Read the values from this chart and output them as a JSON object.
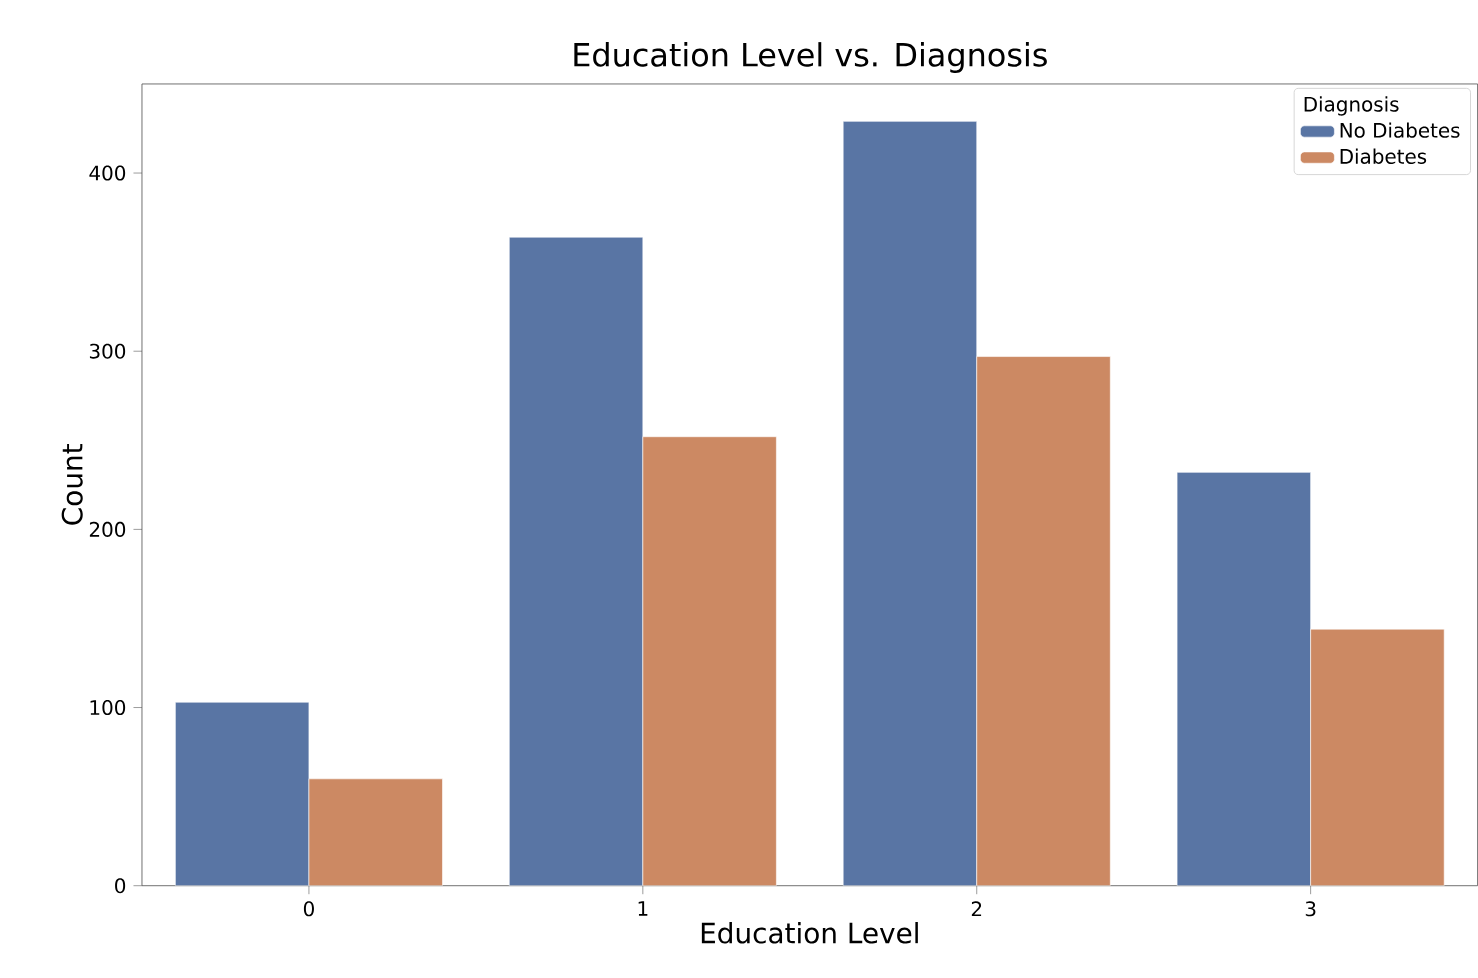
{
  "chart_data": {
    "type": "bar",
    "title": "Education Level vs. Diagnosis",
    "xlabel": "Education Level",
    "ylabel": "Count",
    "legend_title": "Diagnosis",
    "categories": [
      "0",
      "1",
      "2",
      "3"
    ],
    "series": [
      {
        "name": "No Diabetes",
        "color": "#5975a4",
        "values": [
          103,
          364,
          429,
          232
        ]
      },
      {
        "name": "Diabetes",
        "color": "#cc8963",
        "values": [
          60,
          252,
          297,
          144
        ]
      }
    ],
    "ylim": [
      0,
      450
    ],
    "yticks": [
      0,
      100,
      200,
      300,
      400
    ],
    "legend": "top right",
    "grid": false
  }
}
